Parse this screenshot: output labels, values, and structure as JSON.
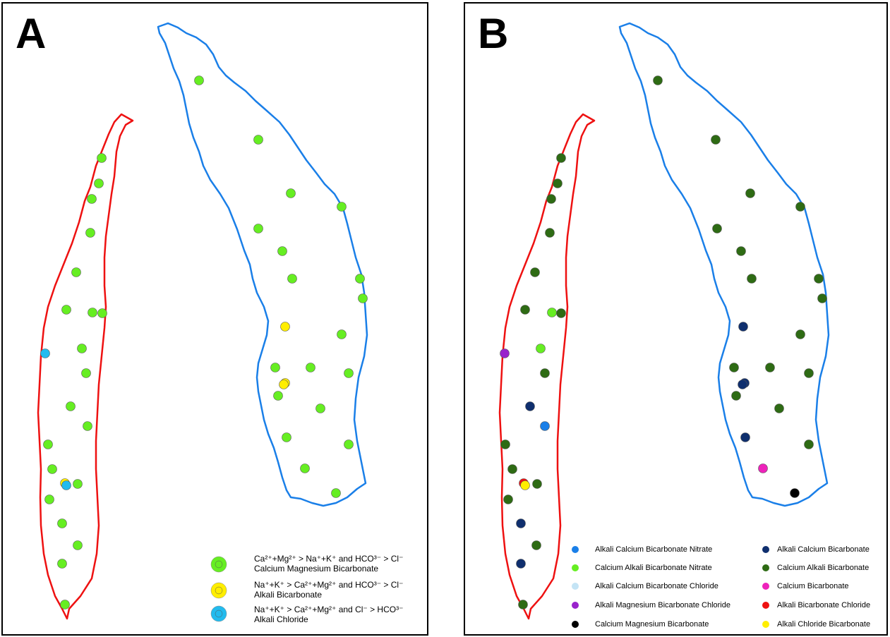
{
  "panels": {
    "a": {
      "letter": "A"
    },
    "b": {
      "letter": "B"
    }
  },
  "legend_a": [
    {
      "line1": "Ca²⁺+Mg²⁺ > Na⁺+K⁺ and HCO³⁻ > Cl⁻",
      "line2": "Calcium Magnesium Bicarbonate",
      "color": "#66ee22"
    },
    {
      "line1": "Na⁺+K⁺ > Ca²⁺+Mg²⁺ and HCO³⁻ > Cl⁻",
      "line2": "Alkali Bicarbonate",
      "color": "#ffee00"
    },
    {
      "line1": "Na⁺+K⁺ > Ca²⁺+Mg²⁺ and Cl⁻ > HCO³⁻",
      "line2": "Alkali Chloride",
      "color": "#22bbee"
    }
  ],
  "legend_b": [
    {
      "label": "Alkali Calcium Bicarbonate Nitrate",
      "color": "#1a7fe8"
    },
    {
      "label": "Alkali Calcium Bicarbonate",
      "color": "#0f2f6e"
    },
    {
      "label": "Calcium Alkali Bicarbonate Nitrate",
      "color": "#66ee22"
    },
    {
      "label": "Calcium Alkali Bicarbonate",
      "color": "#2e6b14"
    },
    {
      "label": "Alkali Calcium Bicarbonate Chloride",
      "color": "#c4e4f5"
    },
    {
      "label": "Calcium Bicarbonate",
      "color": "#ee22bb"
    },
    {
      "label": "Alkali Magnesium Bicarbonate Chloride",
      "color": "#9922cc"
    },
    {
      "label": "Alkali Bicarbonate Chloride",
      "color": "#ee1111"
    },
    {
      "label": "Calcium Magnesium Bicarbonate",
      "color": "#000000"
    },
    {
      "label": "Alkali Chloride Bicarbonate",
      "color": "#ffee00"
    }
  ],
  "colors": {
    "west_outline": "#ee1111",
    "east_outline": "#1a7fe8"
  }
}
